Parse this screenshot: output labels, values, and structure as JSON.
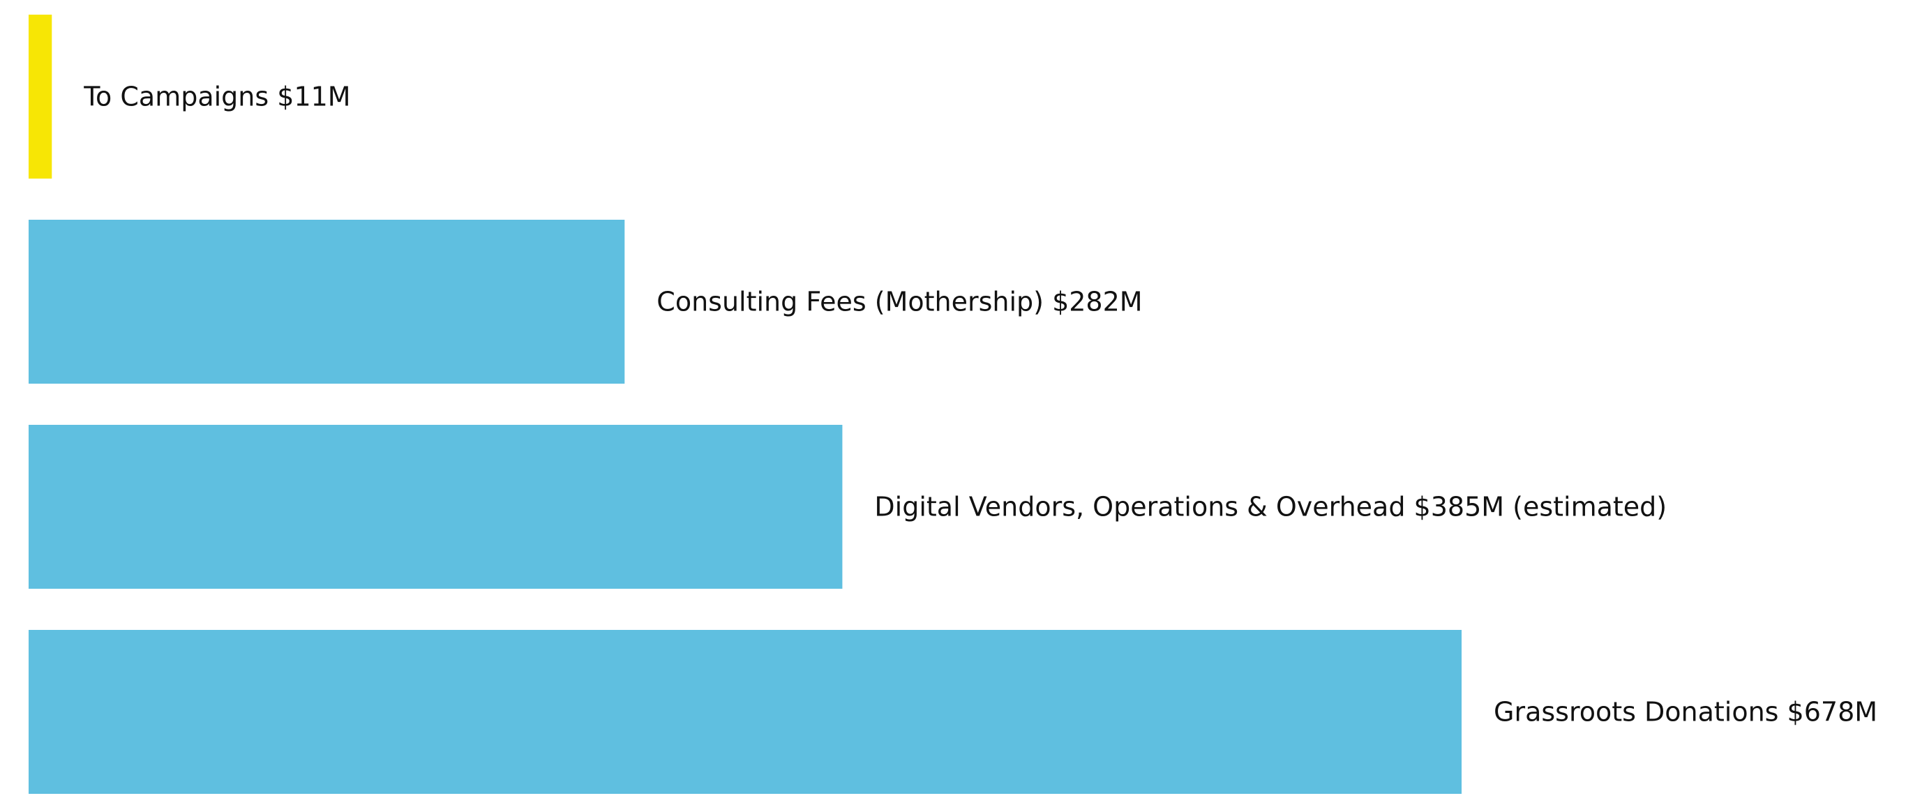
{
  "chart_data": {
    "type": "bar",
    "orientation": "horizontal",
    "title": "",
    "xlabel": "",
    "ylabel": "",
    "grid": false,
    "legend": "none",
    "xlim": [
      0,
      678
    ],
    "unit": "$M",
    "categories": [
      "To Campaigns $11M",
      "Consulting Fees (Mothership) $282M",
      "Digital Vendors, Operations & Overhead $385M (estimated)",
      "Grassroots Donations $678M"
    ],
    "values": [
      11,
      282,
      385,
      678
    ],
    "colors": [
      "#f7e605",
      "#5fbfe0",
      "#5fbfe0",
      "#5fbfe0"
    ]
  }
}
